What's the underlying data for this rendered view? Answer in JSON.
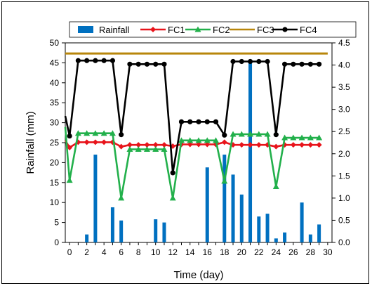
{
  "chart_data": {
    "type": "bar+line",
    "xlabel": "Time (day)",
    "ylabel": "Rainfall (mm)",
    "x_ticks": [
      0,
      2,
      4,
      6,
      8,
      10,
      12,
      14,
      16,
      18,
      20,
      22,
      24,
      26,
      28,
      30
    ],
    "xlim": [
      -0.5,
      30.5
    ],
    "ylim_left": [
      0,
      50
    ],
    "y_ticks_left": [
      0,
      5,
      10,
      15,
      20,
      25,
      30,
      35,
      40,
      45,
      50
    ],
    "ylim_right": [
      0,
      4.5
    ],
    "y_ticks_right": [
      "0.0",
      "0.5",
      "1.0",
      "1.5",
      "2.0",
      "2.5",
      "3.0",
      "3.5",
      "4.0",
      "4.5"
    ],
    "legend": [
      "Rainfall",
      "FC1",
      "FC2",
      "FC3",
      "FC4"
    ],
    "legend_position": "top",
    "bars": {
      "name": "Rainfall",
      "axis": "left",
      "color": "#0070C0",
      "x": [
        1,
        2,
        3,
        4,
        5,
        6,
        7,
        8,
        9,
        10,
        11,
        12,
        13,
        14,
        15,
        16,
        17,
        18,
        19,
        20,
        21,
        22,
        23,
        24,
        25,
        26,
        27,
        28,
        29
      ],
      "values": [
        0,
        2.0,
        22.0,
        0,
        8.8,
        5.5,
        0,
        0,
        0,
        5.8,
        5.0,
        0,
        0,
        0,
        0,
        18.8,
        0,
        22.0,
        17.0,
        12.0,
        45.0,
        6.5,
        7.2,
        1.0,
        2.5,
        0,
        10.0,
        2.0,
        4.5
      ]
    },
    "series": [
      {
        "name": "FC1",
        "axis": "right",
        "color": "#E8141B",
        "marker": "diamond",
        "x": [
          -0.5,
          0,
          1,
          2,
          3,
          4,
          5,
          6,
          7,
          8,
          9,
          10,
          11,
          12,
          13,
          14,
          15,
          16,
          17,
          18,
          19,
          20,
          21,
          22,
          23,
          24,
          25,
          26,
          27,
          28,
          29
        ],
        "values": [
          2.3,
          2.14,
          2.26,
          2.26,
          2.26,
          2.26,
          2.26,
          2.16,
          2.2,
          2.2,
          2.2,
          2.2,
          2.2,
          2.17,
          2.21,
          2.21,
          2.21,
          2.21,
          2.21,
          2.26,
          2.2,
          2.2,
          2.2,
          2.2,
          2.2,
          2.16,
          2.2,
          2.2,
          2.2,
          2.2,
          2.2
        ]
      },
      {
        "name": "FC2",
        "axis": "right",
        "color": "#22B04B",
        "marker": "triangle",
        "x": [
          -0.5,
          0,
          1,
          2,
          3,
          4,
          5,
          6,
          7,
          8,
          9,
          10,
          11,
          12,
          13,
          14,
          15,
          16,
          17,
          18,
          19,
          20,
          21,
          22,
          23,
          24,
          25,
          26,
          27,
          28,
          29
        ],
        "values": [
          2.6,
          1.4,
          2.46,
          2.46,
          2.46,
          2.46,
          2.46,
          1.0,
          2.1,
          2.1,
          2.1,
          2.1,
          2.1,
          1.0,
          2.3,
          2.3,
          2.3,
          2.3,
          2.3,
          1.38,
          2.44,
          2.44,
          2.44,
          2.44,
          2.44,
          1.26,
          2.36,
          2.36,
          2.36,
          2.36,
          2.36
        ]
      },
      {
        "name": "FC3",
        "axis": "right",
        "color": "#B8860B",
        "marker": "none",
        "x": [
          -0.5,
          30
        ],
        "values": [
          4.26,
          4.26
        ]
      },
      {
        "name": "FC4",
        "axis": "right",
        "color": "#000000",
        "marker": "circle",
        "x": [
          -0.5,
          0,
          1,
          2,
          3,
          4,
          5,
          6,
          7,
          8,
          9,
          10,
          11,
          12,
          13,
          14,
          15,
          16,
          17,
          18,
          19,
          20,
          21,
          22,
          23,
          24,
          25,
          26,
          27,
          28,
          29
        ],
        "values": [
          2.85,
          2.4,
          4.1,
          4.1,
          4.1,
          4.1,
          4.1,
          2.43,
          4.02,
          4.02,
          4.02,
          4.02,
          4.02,
          1.57,
          2.72,
          2.72,
          2.72,
          2.72,
          2.72,
          2.42,
          4.08,
          4.08,
          4.08,
          4.08,
          4.08,
          2.43,
          4.02,
          4.02,
          4.02,
          4.02,
          4.02
        ]
      }
    ]
  }
}
